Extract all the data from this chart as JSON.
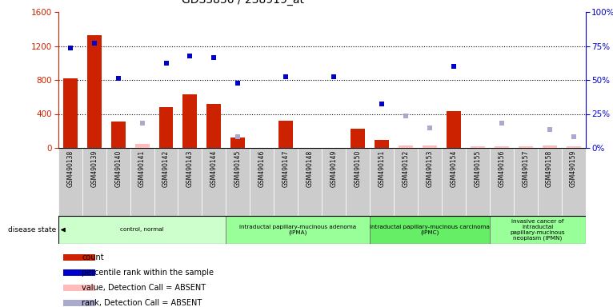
{
  "title": "GDS3836 / 238919_at",
  "samples": [
    "GSM490138",
    "GSM490139",
    "GSM490140",
    "GSM490141",
    "GSM490142",
    "GSM490143",
    "GSM490144",
    "GSM490145",
    "GSM490146",
    "GSM490147",
    "GSM490148",
    "GSM490149",
    "GSM490150",
    "GSM490151",
    "GSM490152",
    "GSM490153",
    "GSM490154",
    "GSM490155",
    "GSM490156",
    "GSM490157",
    "GSM490158",
    "GSM490159"
  ],
  "count_values": [
    820,
    1330,
    315,
    null,
    480,
    630,
    520,
    120,
    null,
    320,
    null,
    null,
    230,
    90,
    null,
    null,
    430,
    null,
    null,
    null,
    null,
    null
  ],
  "count_absent": [
    null,
    null,
    null,
    50,
    null,
    null,
    null,
    null,
    null,
    null,
    null,
    null,
    null,
    null,
    30,
    30,
    null,
    20,
    20,
    20,
    30,
    20
  ],
  "rank_values": [
    1180,
    1230,
    820,
    null,
    1000,
    1080,
    1060,
    760,
    null,
    840,
    null,
    840,
    null,
    520,
    null,
    null,
    960,
    null,
    null,
    null,
    null,
    null
  ],
  "rank_absent": [
    null,
    null,
    null,
    290,
    null,
    null,
    null,
    130,
    null,
    null,
    null,
    null,
    null,
    null,
    380,
    240,
    null,
    null,
    290,
    null,
    220,
    130
  ],
  "disease_groups": [
    {
      "label": "control, normal",
      "start": 0,
      "end": 6,
      "color": "#ccffcc"
    },
    {
      "label": "intraductal papillary-mucinous adenoma\n(IPMA)",
      "start": 7,
      "end": 12,
      "color": "#99ff99"
    },
    {
      "label": "intraductal papillary-mucinous carcinoma\n(IPMC)",
      "start": 13,
      "end": 17,
      "color": "#66ee66"
    },
    {
      "label": "invasive cancer of\nintraductal\npapillary-mucinous\nneoplasm (IPMN)",
      "start": 18,
      "end": 21,
      "color": "#99ff99"
    }
  ],
  "ylim_left": [
    0,
    1600
  ],
  "ylim_right": [
    0,
    100
  ],
  "yticks_left": [
    0,
    400,
    800,
    1200,
    1600
  ],
  "yticks_right": [
    0,
    25,
    50,
    75,
    100
  ],
  "bar_color": "#cc2200",
  "bar_absent_color": "#ffbbbb",
  "rank_color": "#0000cc",
  "rank_absent_color": "#aaaacc",
  "tick_bg_light": "#cccccc",
  "tick_bg_dark": "#bbbbbb",
  "plot_bg": "#ffffff",
  "legend_items": [
    {
      "color": "#cc2200",
      "marker": "rect",
      "label": "count"
    },
    {
      "color": "#0000cc",
      "marker": "rect",
      "label": "percentile rank within the sample"
    },
    {
      "color": "#ffbbbb",
      "marker": "rect",
      "label": "value, Detection Call = ABSENT"
    },
    {
      "color": "#aaaacc",
      "marker": "rect",
      "label": "rank, Detection Call = ABSENT"
    }
  ]
}
